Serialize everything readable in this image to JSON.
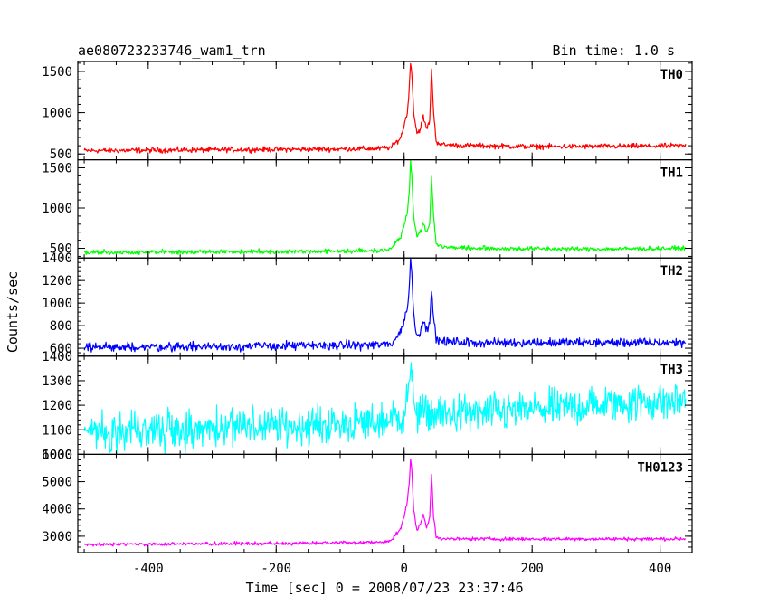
{
  "header": {
    "title": "ae080723233746_wam1_trn",
    "bin_time": "Bin time: 1.0 s"
  },
  "axes": {
    "xlabel": "Time [sec] 0 = 2008/07/23 23:37:46",
    "ylabel": "Counts/sec"
  },
  "chart_data": {
    "type": "line",
    "title": "ae080723233746_wam1_trn",
    "subtitle": "Bin time: 1.0 s",
    "xlabel": "Time [sec] 0 = 2008/07/23 23:37:46",
    "ylabel": "Counts/sec",
    "xlim": [
      -510,
      450
    ],
    "x_ticks": [
      -400,
      -200,
      0,
      200,
      400
    ],
    "grid": false,
    "series": [
      {
        "name": "TH0",
        "color": "#ff0000",
        "ylim": [
          430,
          1620
        ],
        "y_ticks": [
          500,
          1000,
          1500
        ],
        "baseline_start": 530,
        "baseline_end": 600,
        "noise": 22,
        "points": [
          [
            -500,
            540
          ],
          [
            -400,
            545
          ],
          [
            -300,
            550
          ],
          [
            -200,
            555
          ],
          [
            -100,
            560
          ],
          [
            -40,
            565
          ],
          [
            -20,
            580
          ],
          [
            -5,
            700
          ],
          [
            0,
            850
          ],
          [
            5,
            1000
          ],
          [
            8,
            1300
          ],
          [
            10,
            1600
          ],
          [
            12,
            1500
          ],
          [
            15,
            1000
          ],
          [
            20,
            750
          ],
          [
            25,
            800
          ],
          [
            30,
            950
          ],
          [
            35,
            800
          ],
          [
            40,
            900
          ],
          [
            43,
            1550
          ],
          [
            46,
            1000
          ],
          [
            50,
            650
          ],
          [
            60,
            610
          ],
          [
            100,
            600
          ],
          [
            200,
            590
          ],
          [
            300,
            590
          ],
          [
            440,
            600
          ]
        ]
      },
      {
        "name": "TH1",
        "color": "#00ff00",
        "ylim": [
          380,
          1600
        ],
        "y_ticks": [
          500,
          1000,
          1500
        ],
        "baseline_start": 450,
        "baseline_end": 500,
        "noise": 20,
        "points": [
          [
            -500,
            450
          ],
          [
            -300,
            455
          ],
          [
            -100,
            465
          ],
          [
            -40,
            470
          ],
          [
            -20,
            500
          ],
          [
            -5,
            650
          ],
          [
            0,
            800
          ],
          [
            5,
            950
          ],
          [
            8,
            1200
          ],
          [
            10,
            1600
          ],
          [
            12,
            1400
          ],
          [
            15,
            900
          ],
          [
            20,
            650
          ],
          [
            25,
            700
          ],
          [
            30,
            800
          ],
          [
            35,
            700
          ],
          [
            40,
            800
          ],
          [
            43,
            1400
          ],
          [
            46,
            900
          ],
          [
            50,
            560
          ],
          [
            60,
            520
          ],
          [
            100,
            500
          ],
          [
            300,
            490
          ],
          [
            440,
            500
          ]
        ]
      },
      {
        "name": "TH2",
        "color": "#0000ff",
        "ylim": [
          530,
          1400
        ],
        "y_ticks": [
          600,
          800,
          1000,
          1200,
          1400
        ],
        "baseline_start": 610,
        "baseline_end": 650,
        "noise": 28,
        "points": [
          [
            -500,
            610
          ],
          [
            -300,
            615
          ],
          [
            -100,
            625
          ],
          [
            -40,
            630
          ],
          [
            -20,
            640
          ],
          [
            -5,
            750
          ],
          [
            0,
            850
          ],
          [
            5,
            950
          ],
          [
            8,
            1150
          ],
          [
            10,
            1400
          ],
          [
            12,
            1250
          ],
          [
            15,
            900
          ],
          [
            20,
            700
          ],
          [
            25,
            750
          ],
          [
            30,
            850
          ],
          [
            35,
            750
          ],
          [
            40,
            850
          ],
          [
            43,
            1150
          ],
          [
            46,
            850
          ],
          [
            50,
            680
          ],
          [
            60,
            660
          ],
          [
            100,
            650
          ],
          [
            300,
            650
          ],
          [
            440,
            650
          ]
        ]
      },
      {
        "name": "TH3",
        "color": "#00ffff",
        "ylim": [
          1000,
          1400
        ],
        "y_ticks": [
          1000,
          1100,
          1200,
          1300,
          1400
        ],
        "baseline_start": 1100,
        "baseline_end": 1220,
        "noise": 55,
        "points": [
          [
            -500,
            1100
          ],
          [
            -300,
            1105
          ],
          [
            -100,
            1120
          ],
          [
            -40,
            1130
          ],
          [
            0,
            1160
          ],
          [
            10,
            1320
          ],
          [
            20,
            1170
          ],
          [
            60,
            1160
          ],
          [
            150,
            1170
          ],
          [
            250,
            1190
          ],
          [
            350,
            1210
          ],
          [
            440,
            1220
          ]
        ]
      },
      {
        "name": "TH0123",
        "color": "#ff00ff",
        "ylim": [
          2400,
          6000
        ],
        "y_ticks": [
          3000,
          4000,
          5000,
          6000
        ],
        "baseline_start": 2700,
        "baseline_end": 2900,
        "noise": 45,
        "points": [
          [
            -500,
            2700
          ],
          [
            -300,
            2720
          ],
          [
            -100,
            2760
          ],
          [
            -40,
            2780
          ],
          [
            -20,
            2850
          ],
          [
            -5,
            3300
          ],
          [
            0,
            3700
          ],
          [
            5,
            4300
          ],
          [
            8,
            5000
          ],
          [
            10,
            5800
          ],
          [
            12,
            5400
          ],
          [
            15,
            4000
          ],
          [
            20,
            3200
          ],
          [
            25,
            3400
          ],
          [
            30,
            3800
          ],
          [
            35,
            3300
          ],
          [
            40,
            3700
          ],
          [
            43,
            5300
          ],
          [
            46,
            3700
          ],
          [
            50,
            3000
          ],
          [
            60,
            2900
          ],
          [
            100,
            2900
          ],
          [
            300,
            2900
          ],
          [
            440,
            2900
          ]
        ]
      }
    ]
  }
}
